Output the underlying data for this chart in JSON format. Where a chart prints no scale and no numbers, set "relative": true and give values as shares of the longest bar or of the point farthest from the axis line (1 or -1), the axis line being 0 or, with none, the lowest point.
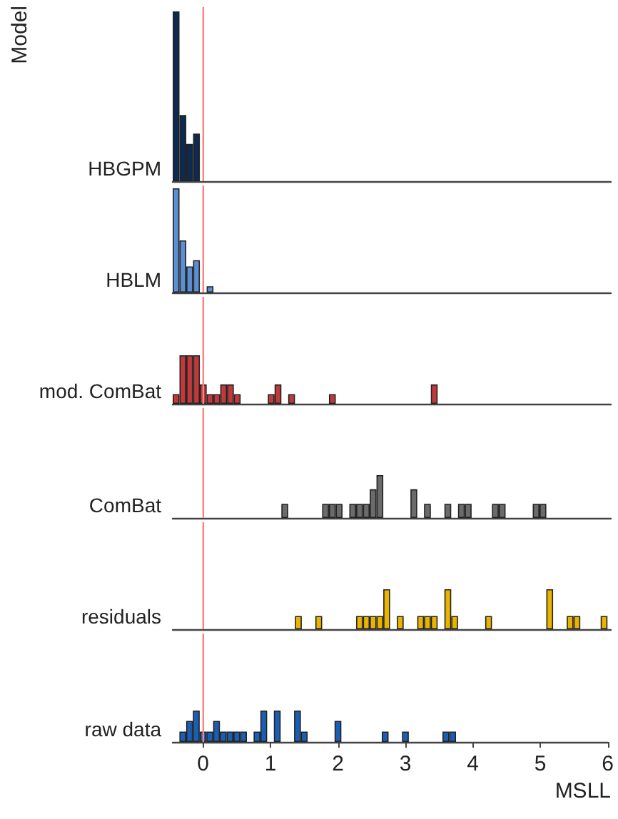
{
  "chart_data": [
    {
      "type": "bar",
      "relative": true,
      "ylabel": "HBGPM",
      "annotations": [
        "Model"
      ],
      "tick_labels": false,
      "xlim": [
        -0.45,
        6
      ],
      "xticks": [
        0,
        1,
        2,
        3,
        4,
        5,
        6
      ],
      "ref_lines": [
        {
          "axis": "x",
          "value": 0,
          "color": "#ff8080"
        }
      ],
      "color": "#0d2a50",
      "x": [
        -0.4,
        -0.3,
        -0.2,
        -0.1
      ],
      "values": [
        1,
        0.39,
        0.22,
        0.28
      ]
    },
    {
      "type": "bar",
      "relative": true,
      "ylabel": "HBLM",
      "tick_labels": false,
      "xlim": [
        -0.45,
        6
      ],
      "xticks": [
        0,
        1,
        2,
        3,
        4,
        5,
        6
      ],
      "ref_lines": [
        {
          "axis": "x",
          "value": 0,
          "color": "#ff8080"
        }
      ],
      "color": "#5b8fd4",
      "x": [
        -0.4,
        -0.3,
        -0.2,
        -0.1,
        0.1
      ],
      "values": [
        1,
        0.5,
        0.25,
        0.31,
        0.06
      ]
    },
    {
      "type": "bar",
      "relative": true,
      "ylabel": "mod. ComBat",
      "tick_labels": false,
      "xlim": [
        -0.45,
        6
      ],
      "xticks": [
        0,
        1,
        2,
        3,
        4,
        5,
        6
      ],
      "ref_lines": [
        {
          "axis": "x",
          "value": 0,
          "color": "#ff8080"
        }
      ],
      "color": "#c0393b",
      "x": [
        -0.4,
        -0.3,
        -0.2,
        -0.1,
        0,
        0.1,
        0.2,
        0.3,
        0.4,
        0.5,
        1,
        1.1,
        1.3,
        1.9,
        3.4
      ],
      "values": [
        0.2,
        1,
        1,
        1,
        0.4,
        0.2,
        0.2,
        0.4,
        0.4,
        0.2,
        0.2,
        0.4,
        0.2,
        0.2,
        0.4
      ]
    },
    {
      "type": "bar",
      "relative": true,
      "ylabel": "ComBat",
      "tick_labels": false,
      "xlim": [
        -0.45,
        6
      ],
      "xticks": [
        0,
        1,
        2,
        3,
        4,
        5,
        6
      ],
      "ref_lines": [
        {
          "axis": "x",
          "value": 0,
          "color": "#ff8080"
        }
      ],
      "color": "#6b6b6b",
      "x": [
        1.2,
        1.8,
        1.9,
        2,
        2.2,
        2.3,
        2.4,
        2.5,
        2.6,
        3.1,
        3.3,
        3.6,
        3.8,
        3.9,
        4.3,
        4.4,
        4.9,
        5
      ],
      "values": [
        0.33,
        0.33,
        0.33,
        0.33,
        0.33,
        0.33,
        0.33,
        0.67,
        1,
        0.67,
        0.33,
        0.33,
        0.33,
        0.33,
        0.33,
        0.33,
        0.33,
        0.33
      ]
    },
    {
      "type": "bar",
      "relative": true,
      "ylabel": "residuals",
      "tick_labels": false,
      "xlim": [
        -0.45,
        6
      ],
      "xticks": [
        0,
        1,
        2,
        3,
        4,
        5,
        6
      ],
      "ref_lines": [
        {
          "axis": "x",
          "value": 0,
          "color": "#ff8080"
        }
      ],
      "color": "#e8b400",
      "x": [
        1.4,
        1.7,
        2.3,
        2.4,
        2.5,
        2.6,
        2.7,
        2.9,
        3.2,
        3.3,
        3.4,
        3.6,
        3.7,
        4.2,
        5.1,
        5.4,
        5.5,
        5.9
      ],
      "values": [
        0.33,
        0.33,
        0.33,
        0.33,
        0.33,
        0.33,
        1,
        0.33,
        0.33,
        0.33,
        0.33,
        1,
        0.33,
        0.33,
        1,
        0.33,
        0.33,
        0.33
      ]
    },
    {
      "type": "bar",
      "relative": true,
      "ylabel": "raw data",
      "xlabel": "MSLL",
      "tick_labels": "x",
      "xlim": [
        -0.45,
        6
      ],
      "xticks": [
        0,
        1,
        2,
        3,
        4,
        5,
        6
      ],
      "ref_lines": [
        {
          "axis": "x",
          "value": 0,
          "color": "#ff8080"
        }
      ],
      "color": "#1a5fb4",
      "x": [
        -0.3,
        -0.2,
        -0.1,
        0,
        0.1,
        0.2,
        0.3,
        0.4,
        0.5,
        0.6,
        0.8,
        0.9,
        1.1,
        1.4,
        1.5,
        2,
        2.7,
        3,
        3.6,
        3.7
      ],
      "values": [
        0.33,
        0.67,
        1,
        0.33,
        0.33,
        0.67,
        0.33,
        0.33,
        0.33,
        0.33,
        0.33,
        1,
        1,
        1,
        0.33,
        0.67,
        0.33,
        0.33,
        0.33,
        0.33
      ]
    }
  ]
}
